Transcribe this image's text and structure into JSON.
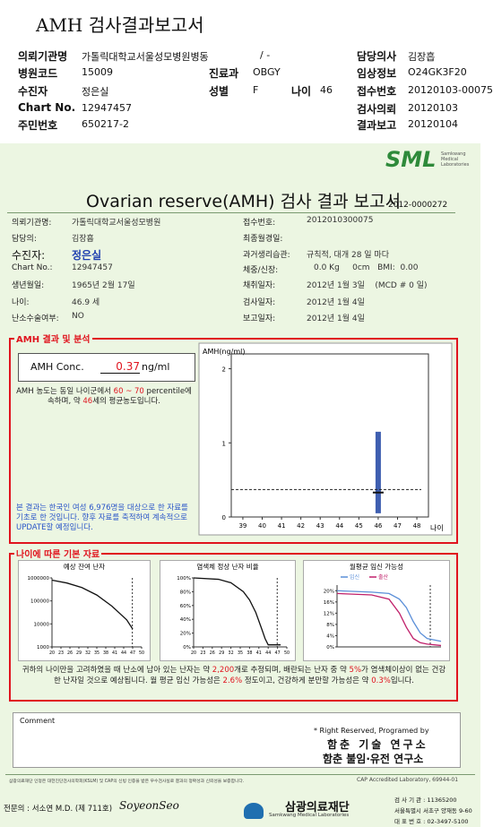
{
  "header": {
    "title": "AMH 검사결과보고서",
    "institution": {
      "label": "의뢰기관명",
      "value": "가톨릭대학교서울성모병원병동"
    },
    "ward": "/ -",
    "doctor": {
      "label": "담당의사",
      "value": "김장흡"
    },
    "hospital_code": {
      "label": "병원코드",
      "value": "15009"
    },
    "department": {
      "label": "진료과",
      "value": "OBGY"
    },
    "clinical_info": {
      "label": "임상정보",
      "value": "O24GK3F20"
    },
    "patient": {
      "label": "수진자",
      "value": "정은실"
    },
    "sex": {
      "label": "성별",
      "value": "F"
    },
    "age": {
      "label": "나이",
      "value": "46"
    },
    "receipt_no": {
      "label": "접수번호",
      "value": "20120103-00075"
    },
    "chart_no": {
      "label": "Chart No.",
      "value": "12947457"
    },
    "request_date": {
      "label": "검사의뢰",
      "value": "20120103"
    },
    "resident_no": {
      "label": "주민번호",
      "value": "650217-2"
    },
    "report_date": {
      "label": "결과보고",
      "value": "20120104"
    }
  },
  "report": {
    "logo": "SML",
    "logo_sub": "Samkwang Medical Laboratories",
    "title": "Ovarian reserve(AMH) 검사 결과 보고서",
    "number": "2012-0000272",
    "info": {
      "institution": {
        "label": "의뢰기관명:",
        "value": "가톨릭대학교서울성모병원"
      },
      "doctor": {
        "label": "담당의:",
        "value": "김장흡"
      },
      "patient": {
        "label": "수진자:",
        "value": "정은실"
      },
      "chart_no": {
        "label": "Chart No.:",
        "value": "12947457"
      },
      "birth": {
        "label": "생년월일:",
        "value": "1965년 2월 17일"
      },
      "age": {
        "label": "나이:",
        "value": 46.9,
        "unit": "세"
      },
      "surgery": {
        "label": "난소수술여부:",
        "value": "NO"
      },
      "receipt_no": {
        "label": "접수번호:",
        "value": "2012010300075"
      },
      "lmp": {
        "label": "최종월경일:"
      },
      "cycle": {
        "label": "과거생리습관:",
        "value": "규칙적, 대개 28 일 마다"
      },
      "body": {
        "label": "체중/신장:",
        "value": "0.0 Kg     0cm   BMI:  0.00"
      },
      "sampling": {
        "label": "채취일자:",
        "value": "2012년 1월 3일    (MCD # 0 일)"
      },
      "test_date": {
        "label": "검사일자:",
        "value": "2012년 1월 4일"
      },
      "report_date": {
        "label": "보고일자:",
        "value": "2012년 1월 4일"
      }
    },
    "amh": {
      "section": "AMH 결과 및 분석",
      "label": "AMH Conc.",
      "value": 0.37,
      "unit": "ng/ml",
      "analysis": [
        {
          "text": "AMH 농도는 동일 나이군에서 "
        },
        {
          "text": "60 ~ 70",
          "emphasis": true
        },
        {
          "text": " percentile에 속하며, 약 "
        },
        {
          "text": "46",
          "emphasis": true
        },
        {
          "text": "세의 평균농도입니다."
        }
      ],
      "note": "본 결과는 한국인 여성 6,976명을 대상으로 한 자료를 기초로 한 것입니다. 향후 자료를 축적하여 계속적으로 UPDATE할 예정입니다.",
      "chart": {
        "y_label": "AMH(ng/ml)",
        "x_label": "나이",
        "xlim": [
          38.4,
          48.6
        ],
        "xticks": [
          39,
          40,
          41,
          42,
          43,
          44,
          45,
          46,
          47,
          48
        ],
        "ylim": [
          0,
          2.2
        ],
        "yticks": [
          0,
          1,
          2
        ],
        "box": {
          "age": 46,
          "low": 0.05,
          "high": 1.15,
          "median": 0.33
        },
        "color": "#3f5fb0"
      }
    },
    "basic": {
      "section": "나이에 따른 기본 자료",
      "charts": [
        {
          "title": "예상 잔여 난자",
          "log": true,
          "ylim": [
            1000,
            1000000
          ],
          "yticks": [
            1000000,
            100000,
            10000,
            1000
          ],
          "xlim": [
            20,
            50
          ],
          "xticks": [
            20,
            23,
            26,
            29,
            32,
            35,
            38,
            41,
            44,
            47,
            50
          ],
          "series": [
            {
              "color": "#111111",
              "x": [
                20,
                25,
                30,
                35,
                40,
                45,
                47
              ],
              "values": [
                800000,
                600000,
                380000,
                180000,
                60000,
                15000,
                6000
              ]
            }
          ]
        },
        {
          "title": "염색체 정상 난자 비율",
          "ylim": [
            0,
            100
          ],
          "yticks": [
            {
              "value": 0,
              "label": "0%"
            },
            {
              "value": 20,
              "label": "20%"
            },
            {
              "value": 40,
              "label": "40%"
            },
            {
              "value": 60,
              "label": "60%"
            },
            {
              "value": 80,
              "label": "80%"
            },
            {
              "value": 100,
              "label": "100%"
            }
          ],
          "xlim": [
            20,
            50
          ],
          "xticks": [
            20,
            23,
            26,
            29,
            32,
            35,
            38,
            41,
            44,
            47,
            50
          ],
          "series": [
            {
              "color": "#111111",
              "x": [
                20,
                28,
                32,
                36,
                38,
                40,
                42,
                43,
                44,
                48
              ],
              "values": [
                100,
                98,
                93,
                80,
                68,
                50,
                25,
                12,
                3,
                3
              ]
            }
          ]
        },
        {
          "title": "월평균 임신 가능성",
          "ylim": [
            0,
            22
          ],
          "yticks": [
            {
              "value": 0,
              "label": "0%"
            },
            {
              "value": 4,
              "label": "4%"
            },
            {
              "value": 8,
              "label": "8%"
            },
            {
              "value": 12,
              "label": "12%"
            },
            {
              "value": 16,
              "label": "16%"
            },
            {
              "value": 20,
              "label": "20%"
            }
          ],
          "xlim": [
            20,
            50
          ],
          "series": [
            {
              "name": "임신",
              "color": "#5b8fd8",
              "x": [
                20,
                30,
                35,
                38,
                40,
                42,
                44,
                46,
                50
              ],
              "values": [
                20,
                19.5,
                19,
                17,
                14,
                9,
                5,
                3,
                2
              ]
            },
            {
              "name": "출산",
              "color": "#c0206a",
              "x": [
                20,
                30,
                35,
                38,
                40,
                42,
                44,
                46,
                50
              ],
              "values": [
                19,
                18.5,
                17,
                12,
                7,
                3,
                1.5,
                1,
                0.5
              ]
            }
          ]
        }
      ],
      "summary": [
        {
          "text": "귀하의 나이만을 고려하였을 때 난소에 남아 있는 난자는 약 "
        },
        {
          "text": "2,200",
          "emphasis": true
        },
        {
          "text": "개로 추정되며, 배란되는 난자 중 약 "
        },
        {
          "text": "5%",
          "emphasis": true
        },
        {
          "text": "가 염색체이상이 없는 건강한 난자일 것으로 예상됩니다. 월 평균 임신 가능성은 "
        },
        {
          "text": "2.6%",
          "emphasis": true
        },
        {
          "text": " 정도이고, 건강하게 분만할 가능성은 약 "
        },
        {
          "text": "0.3%",
          "emphasis": true
        },
        {
          "text": "입니다."
        }
      ]
    },
    "comment": "Comment",
    "rights": "* Right Reserved, Programed by",
    "lab1": "함춘 기술 연구소",
    "lab2": "함춘 불임·유전 연구소",
    "footer": {
      "certification": "삼광의료재단 인정은 대한진단검사의학회(KSLM) 및 CAP의 신빙 인증을 받은 우수검사실로 결과의 정확성과 신뢰성을 보증합니다.",
      "cap": "CAP  Accredited  Laboratory,  69944-01",
      "specialist": "전문의 : 서소연 M.D. (제 711호)",
      "signature": "SoyeonSeo",
      "foundation": "삼광의료재단",
      "foundation_en": "Samkwang Medical Laboratories",
      "org_code": "검 사 기 관 : 11365200",
      "address": "서울특별시 서초구 양재동 9-60",
      "phone": "대 표 번 호 : 02-3497-5100"
    }
  }
}
